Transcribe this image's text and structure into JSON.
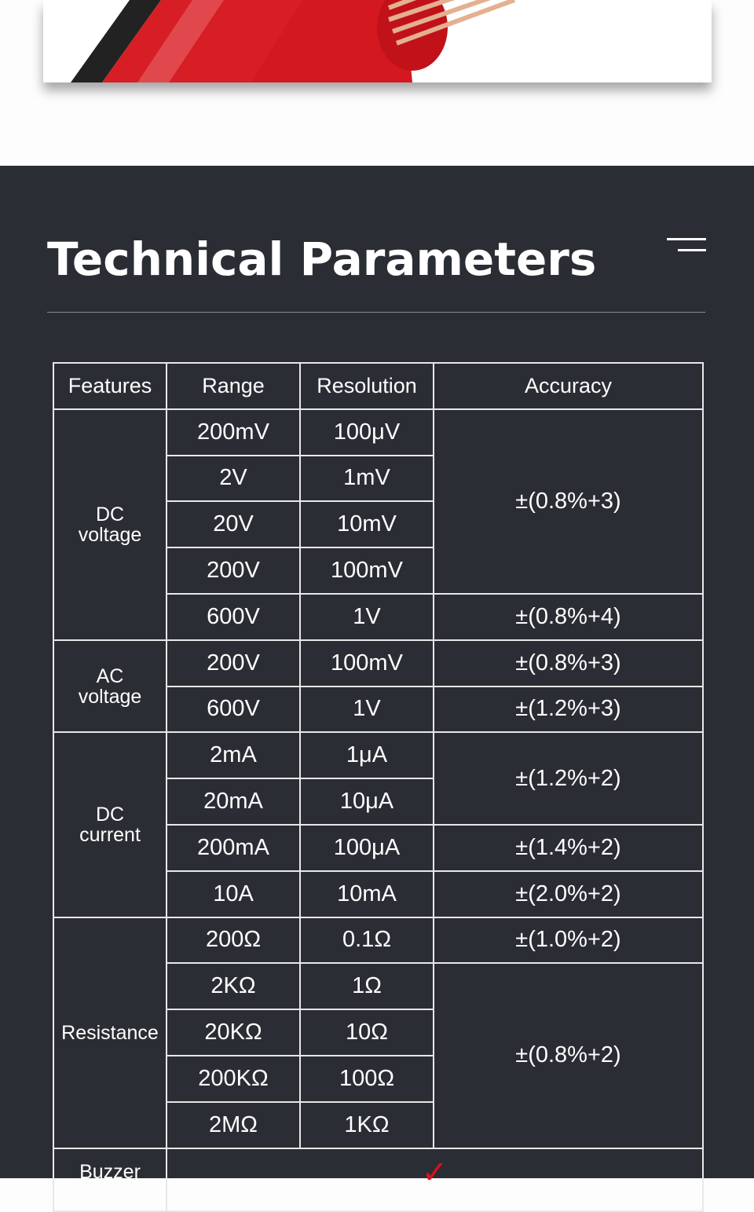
{
  "section_title": "Technical Parameters",
  "table": {
    "headers": [
      "Features",
      "Range",
      "Resolution",
      "Accuracy"
    ],
    "groups": [
      {
        "feature": [
          "DC",
          "voltage"
        ],
        "rows": [
          [
            "200mV",
            "100μV"
          ],
          [
            "2V",
            "1mV"
          ],
          [
            "20V",
            "10mV"
          ],
          [
            "200V",
            "100mV"
          ],
          [
            "600V",
            "1V"
          ]
        ],
        "accuracy": [
          "±(0.8%+3)",
          "±(0.8%+4)"
        ]
      },
      {
        "feature": [
          "AC",
          "voltage"
        ],
        "rows": [
          [
            "200V",
            "100mV"
          ],
          [
            "600V",
            "1V"
          ]
        ],
        "accuracy": [
          "±(0.8%+3)",
          "±(1.2%+3)"
        ]
      },
      {
        "feature": [
          "DC",
          "current"
        ],
        "rows": [
          [
            "2mA",
            "1μA"
          ],
          [
            "20mA",
            "10μA"
          ],
          [
            "200mA",
            "100μA"
          ],
          [
            "10A",
            "10mA"
          ]
        ],
        "accuracy": [
          "±(1.2%+2)",
          "±(1.4%+2)",
          "±(2.0%+2)"
        ]
      },
      {
        "feature": [
          "Resistance"
        ],
        "rows": [
          [
            "200Ω",
            "0.1Ω"
          ],
          [
            "2KΩ",
            "1Ω"
          ],
          [
            "20KΩ",
            "10Ω"
          ],
          [
            "200KΩ",
            "100Ω"
          ],
          [
            "2MΩ",
            "1KΩ"
          ]
        ],
        "accuracy": [
          "±(1.0%+2)",
          "±(0.8%+2)"
        ]
      }
    ],
    "buzzer": {
      "feature": "Buzzer",
      "value": "✓"
    }
  },
  "colors": {
    "background": "#2b2d34",
    "check": "#e0101a"
  }
}
